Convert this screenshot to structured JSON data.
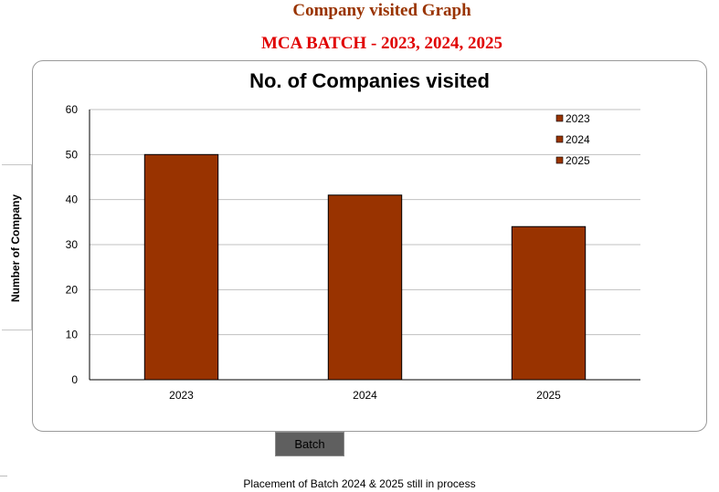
{
  "header": {
    "title": "Company visited Graph",
    "subtitle": "MCA BATCH - 2023, 2024, 2025",
    "title_color": "#993300",
    "subtitle_color": "#e00000"
  },
  "footnote": "Placement of Batch 2024 & 2025 still in process",
  "chart_data": {
    "type": "bar",
    "title": "No. of Companies visited",
    "xlabel": "Batch",
    "ylabel": "Number  of Company",
    "categories": [
      "2023",
      "2024",
      "2025"
    ],
    "values": [
      50,
      41,
      34
    ],
    "ylim": [
      0,
      60
    ],
    "yticks": [
      0,
      10,
      20,
      30,
      40,
      50,
      60
    ],
    "grid": true,
    "bar_color": "#993300",
    "legend": {
      "placement": "top-right",
      "entries": [
        "2023",
        "2024",
        "2025"
      ]
    }
  }
}
